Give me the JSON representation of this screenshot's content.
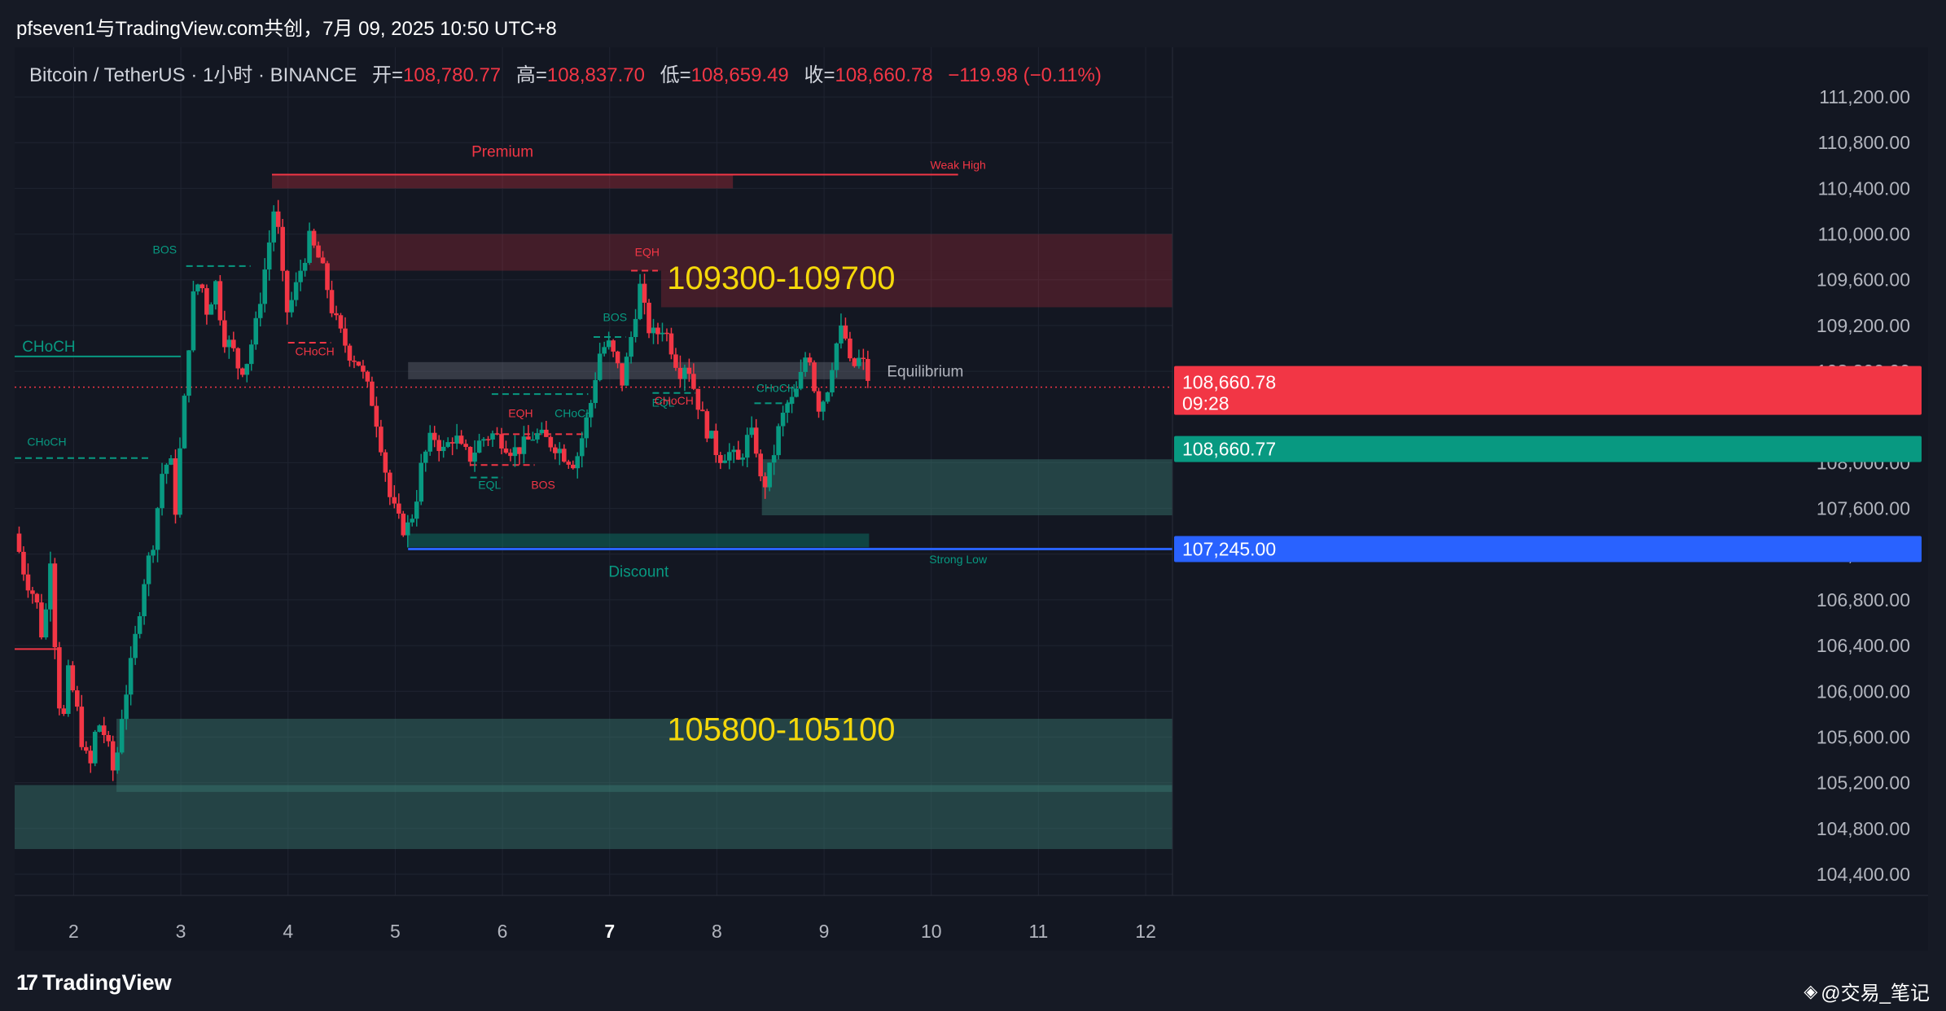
{
  "window": {
    "title": "pfseven1与TradingView.com共创，7月 09, 2025 10:50 UTC+8"
  },
  "legend": {
    "symbol": "Bitcoin / TetherUS · 1小时 · BINANCE",
    "open_label": "开=",
    "open_value": "108,780.77",
    "high_label": "高=",
    "high_value": "108,837.70",
    "low_label": "低=",
    "low_value": "108,659.49",
    "close_label": "收=",
    "close_value": "108,660.78",
    "change_value": "−119.98 (−0.11%)"
  },
  "footer": {
    "brand": "TradingView",
    "brand_mark": "17",
    "watermark": "@交易_笔记"
  },
  "chart_data": {
    "type": "candlestick",
    "symbol": "Bitcoin / TetherUS",
    "interval": "1小时",
    "exchange": "BINANCE",
    "ohlc": {
      "open": 108780.77,
      "high": 108837.7,
      "low": 108659.49,
      "close": 108660.78,
      "change": -119.98,
      "change_pct": -0.11
    },
    "x_ticks": [
      "2",
      "3",
      "4",
      "5",
      "6",
      "7",
      "8",
      "9",
      "10",
      "11",
      "12"
    ],
    "y_ticks": [
      "111,200.00",
      "110,800.00",
      "110,400.00",
      "110,000.00",
      "109,600.00",
      "109,200.00",
      "108,800.00",
      "108,000.00",
      "107,600.00",
      "107,200.00",
      "106,800.00",
      "106,400.00",
      "106,000.00",
      "105,600.00",
      "105,200.00",
      "104,800.00",
      "104,400.00"
    ],
    "ylim": [
      104300,
      111350
    ],
    "xlim": [
      1.45,
      12.25
    ],
    "grid": true,
    "price_labels": {
      "last_price": "108,660.78",
      "countdown": "09:28",
      "prev_close": "108,660.77",
      "horizontal_line": "107,245.00",
      "horizontal_line_value": 107245
    },
    "colors": {
      "up": "#089981",
      "down": "#f23645",
      "line": "#2962ff",
      "premium": "#f23645",
      "discount": "#089981",
      "annotation": "#f5d80a"
    },
    "zones": [
      {
        "label": "Premium",
        "x1": 3.85,
        "x2": 8.15,
        "y1": 110400,
        "y2": 110520,
        "kind": "premium"
      },
      {
        "label": "Equilibrium",
        "x1": 5.12,
        "x2": 9.42,
        "y1": 108730,
        "y2": 108880,
        "kind": "equilibrium"
      },
      {
        "label": "Discount",
        "x1": 5.12,
        "x2": 9.42,
        "y1": 107260,
        "y2": 107380,
        "kind": "discount"
      },
      {
        "label": "",
        "x1": 4.2,
        "x2": 12.25,
        "y1": 109680,
        "y2": 110000,
        "kind": "supply"
      },
      {
        "label": "",
        "x1": 7.48,
        "x2": 12.25,
        "y1": 109360,
        "y2": 109680,
        "kind": "supply"
      },
      {
        "label": "",
        "x1": 8.42,
        "x2": 12.25,
        "y1": 107540,
        "y2": 108030,
        "kind": "demand"
      },
      {
        "label": "",
        "x1": 2.4,
        "x2": 12.25,
        "y1": 105120,
        "y2": 105760,
        "kind": "demand"
      },
      {
        "label": "",
        "x1": 1.45,
        "x2": 12.25,
        "y1": 104620,
        "y2": 105180,
        "kind": "demand"
      }
    ],
    "annotations": [
      {
        "text": "109300-109700",
        "x": 8.6,
        "y": 109520,
        "kind": "big"
      },
      {
        "text": "105800-105100",
        "x": 8.6,
        "y": 105570,
        "kind": "big"
      },
      {
        "text": "Weak High",
        "x": 10.25,
        "y": 110570,
        "kind": "small-red"
      },
      {
        "text": "Strong Low",
        "x": 10.25,
        "y": 107120,
        "kind": "small-green"
      },
      {
        "text": "CHoCH",
        "x": 1.52,
        "y": 108970,
        "kind": "large-green"
      },
      {
        "text": "CHoCH",
        "x": 1.75,
        "y": 108150,
        "kind": "small-green"
      },
      {
        "text": "BOS",
        "x": 2.85,
        "y": 109830,
        "kind": "small-green"
      },
      {
        "text": "CHoCH",
        "x": 4.25,
        "y": 108940,
        "kind": "small-red"
      },
      {
        "text": "EQH",
        "x": 6.17,
        "y": 108400,
        "kind": "small-red"
      },
      {
        "text": "CHoCH",
        "x": 6.67,
        "y": 108400,
        "kind": "small-green"
      },
      {
        "text": "EQL",
        "x": 5.88,
        "y": 107770,
        "kind": "small-green"
      },
      {
        "text": "BOS",
        "x": 6.38,
        "y": 107770,
        "kind": "small-red"
      },
      {
        "text": "BOS",
        "x": 7.05,
        "y": 109240,
        "kind": "small-green"
      },
      {
        "text": "EQH",
        "x": 7.35,
        "y": 109810,
        "kind": "small-red"
      },
      {
        "text": "EQL",
        "x": 7.5,
        "y": 108490,
        "kind": "small-green"
      },
      {
        "text": "CHoCH",
        "x": 7.6,
        "y": 108510,
        "kind": "small-red"
      },
      {
        "text": "CHoCH",
        "x": 8.55,
        "y": 108620,
        "kind": "small-green"
      }
    ],
    "structure_lines": [
      {
        "x1": 1.45,
        "x2": 3.0,
        "y": 108930,
        "color": "green",
        "dashed": false
      },
      {
        "x1": 1.45,
        "x2": 2.7,
        "y": 108040,
        "color": "green",
        "dashed": true
      },
      {
        "x1": 1.45,
        "x2": 1.85,
        "y": 106370,
        "color": "red",
        "dashed": false
      },
      {
        "x1": 3.05,
        "x2": 3.65,
        "y": 109720,
        "color": "green",
        "dashed": true
      },
      {
        "x1": 3.85,
        "x2": 10.25,
        "y": 110520,
        "color": "red",
        "dashed": false
      },
      {
        "x1": 4.0,
        "x2": 4.4,
        "y": 109050,
        "color": "red",
        "dashed": true
      },
      {
        "x1": 5.9,
        "x2": 6.8,
        "y": 108600,
        "color": "green",
        "dashed": true
      },
      {
        "x1": 6.0,
        "x2": 6.8,
        "y": 108250,
        "color": "red",
        "dashed": true
      },
      {
        "x1": 5.7,
        "x2": 6.3,
        "y": 107980,
        "color": "red",
        "dashed": true
      },
      {
        "x1": 5.7,
        "x2": 6.0,
        "y": 107870,
        "color": "green",
        "dashed": true
      },
      {
        "x1": 6.85,
        "x2": 7.15,
        "y": 109100,
        "color": "green",
        "dashed": true
      },
      {
        "x1": 7.2,
        "x2": 7.45,
        "y": 109680,
        "color": "red",
        "dashed": true
      },
      {
        "x1": 7.4,
        "x2": 7.8,
        "y": 108610,
        "color": "green",
        "dashed": true
      },
      {
        "x1": 8.35,
        "x2": 8.7,
        "y": 108520,
        "color": "green",
        "dashed": true
      },
      {
        "x1": 5.12,
        "x2": 12.25,
        "y": 107245,
        "color": "blue",
        "dashed": false
      }
    ],
    "last_price_line": 108660.78,
    "price_path": [
      [
        1.45,
        107380
      ],
      [
        1.55,
        107000
      ],
      [
        1.65,
        106800
      ],
      [
        1.72,
        106400
      ],
      [
        1.78,
        107250
      ],
      [
        1.85,
        106000
      ],
      [
        1.9,
        105700
      ],
      [
        1.95,
        106150
      ],
      [
        2.02,
        105900
      ],
      [
        2.08,
        105550
      ],
      [
        2.15,
        105300
      ],
      [
        2.22,
        105750
      ],
      [
        2.3,
        105600
      ],
      [
        2.38,
        105250
      ],
      [
        2.45,
        105800
      ],
      [
        2.55,
        106300
      ],
      [
        2.65,
        106950
      ],
      [
        2.75,
        107350
      ],
      [
        2.82,
        107900
      ],
      [
        2.9,
        108050
      ],
      [
        2.95,
        107600
      ],
      [
        3.0,
        108200
      ],
      [
        3.05,
        108700
      ],
      [
        3.1,
        109400
      ],
      [
        3.18,
        109620
      ],
      [
        3.25,
        109300
      ],
      [
        3.32,
        109600
      ],
      [
        3.4,
        109100
      ],
      [
        3.48,
        109000
      ],
      [
        3.55,
        108800
      ],
      [
        3.62,
        108900
      ],
      [
        3.7,
        109200
      ],
      [
        3.75,
        109500
      ],
      [
        3.82,
        109900
      ],
      [
        3.88,
        110300
      ],
      [
        3.93,
        109800
      ],
      [
        3.98,
        109300
      ],
      [
        4.05,
        109450
      ],
      [
        4.12,
        109700
      ],
      [
        4.2,
        109950
      ],
      [
        4.28,
        109800
      ],
      [
        4.35,
        109600
      ],
      [
        4.42,
        109300
      ],
      [
        4.5,
        109100
      ],
      [
        4.58,
        108950
      ],
      [
        4.65,
        108900
      ],
      [
        4.72,
        108700
      ],
      [
        4.8,
        108500
      ],
      [
        4.88,
        108100
      ],
      [
        4.95,
        107700
      ],
      [
        5.02,
        107500
      ],
      [
        5.1,
        107400
      ],
      [
        5.18,
        107600
      ],
      [
        5.25,
        108000
      ],
      [
        5.35,
        108250
      ],
      [
        5.45,
        108100
      ],
      [
        5.55,
        108250
      ],
      [
        5.62,
        108100
      ],
      [
        5.7,
        108050
      ],
      [
        5.8,
        108200
      ],
      [
        5.9,
        108250
      ],
      [
        6.0,
        108200
      ],
      [
        6.1,
        108100
      ],
      [
        6.2,
        108150
      ],
      [
        6.3,
        108250
      ],
      [
        6.4,
        108200
      ],
      [
        6.5,
        108150
      ],
      [
        6.6,
        108050
      ],
      [
        6.68,
        108000
      ],
      [
        6.75,
        108250
      ],
      [
        6.82,
        108500
      ],
      [
        6.9,
        108950
      ],
      [
        6.98,
        109050
      ],
      [
        7.05,
        108900
      ],
      [
        7.12,
        108700
      ],
      [
        7.2,
        109100
      ],
      [
        7.28,
        109550
      ],
      [
        7.35,
        109200
      ],
      [
        7.42,
        109100
      ],
      [
        7.5,
        109200
      ],
      [
        7.58,
        109000
      ],
      [
        7.65,
        108800
      ],
      [
        7.72,
        108900
      ],
      [
        7.8,
        108600
      ],
      [
        7.88,
        108350
      ],
      [
        7.95,
        108200
      ],
      [
        8.02,
        108050
      ],
      [
        8.1,
        108100
      ],
      [
        8.2,
        108000
      ],
      [
        8.28,
        108200
      ],
      [
        8.35,
        108250
      ],
      [
        8.42,
        107750
      ],
      [
        8.5,
        107950
      ],
      [
        8.58,
        108300
      ],
      [
        8.65,
        108500
      ],
      [
        8.72,
        108550
      ],
      [
        8.8,
        108800
      ],
      [
        8.85,
        109050
      ],
      [
        8.9,
        108700
      ],
      [
        8.95,
        108500
      ],
      [
        9.02,
        108600
      ],
      [
        9.1,
        109000
      ],
      [
        9.18,
        109200
      ],
      [
        9.25,
        108800
      ],
      [
        9.32,
        108900
      ],
      [
        9.38,
        108850
      ],
      [
        9.42,
        108660.78
      ]
    ]
  }
}
